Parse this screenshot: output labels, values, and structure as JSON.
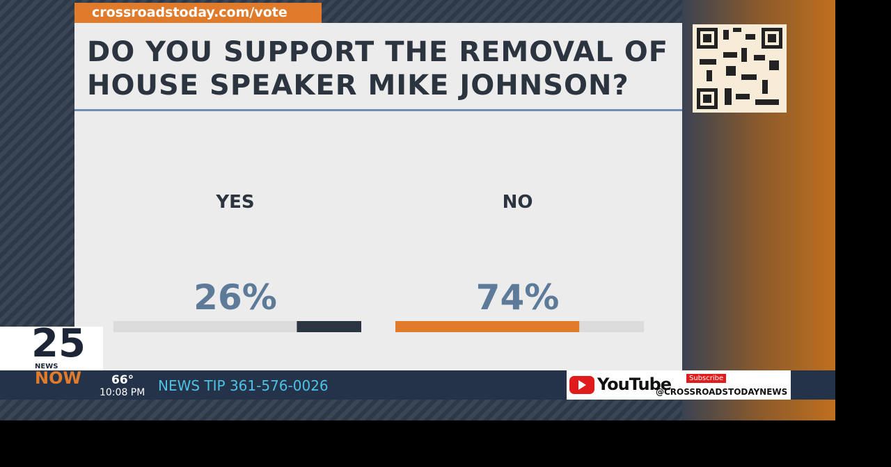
{
  "chart_data": {
    "type": "bar",
    "title": "DO YOU SUPPORT THE REMOVAL OF HOUSE SPEAKER MIKE JOHNSON?",
    "categories": [
      "YES",
      "NO"
    ],
    "values": [
      26,
      74
    ],
    "value_labels": [
      "26%",
      "74%"
    ],
    "colors": [
      "#2b3542",
      "#e07b2b"
    ],
    "xlim": [
      0,
      100
    ]
  },
  "broadcast": {
    "url": "crossroadstoday.com/vote",
    "logo_number": "25",
    "logo_news": "NEWS",
    "logo_now": "NOW",
    "temperature": "66°",
    "time": "10:08 PM",
    "news_tip": "NEWS TIP 361-576-0026",
    "youtube": "YouTube",
    "subscribe": "Subscribe",
    "handle": "@CROSSROADSTODAYNEWS"
  }
}
